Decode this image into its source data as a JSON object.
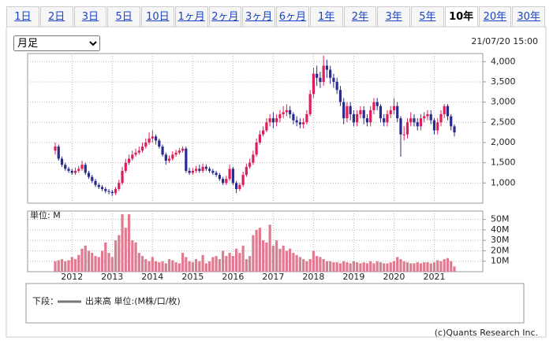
{
  "tabs": [
    "1日",
    "2日",
    "3日",
    "5日",
    "10日",
    "1ヶ月",
    "2ヶ月",
    "3ヶ月",
    "6ヶ月",
    "1年",
    "2年",
    "3年",
    "5年",
    "10年",
    "20年",
    "30年"
  ],
  "active_tab": 13,
  "period_select": "月足",
  "timestamp": "21/07/20 15:00",
  "legend": {
    "prefix": "下段：",
    "entry": "出来高 単位:(M株/口/枚)"
  },
  "credit": "(c)Quants Research Inc.",
  "chart_data": [
    {
      "type": "candlestick",
      "up_color": "#dc1e5a",
      "down_color": "#2b2b8c",
      "grid": true,
      "ylim": [
        500,
        4200
      ],
      "yticks": [
        {
          "value": 1000,
          "label": "1,000"
        },
        {
          "value": 1500,
          "label": "1,500"
        },
        {
          "value": 2000,
          "label": "2,000"
        },
        {
          "value": 2500,
          "label": "2,500"
        },
        {
          "value": 3000,
          "label": "3,000"
        },
        {
          "value": 3500,
          "label": "3,500"
        },
        {
          "value": 4000,
          "label": "4,000"
        }
      ],
      "open": [
        1800,
        1900,
        1600,
        1450,
        1350,
        1300,
        1250,
        1300,
        1350,
        1450,
        1250,
        1150,
        1050,
        950,
        900,
        850,
        800,
        780,
        750,
        850,
        1000,
        1300,
        1500,
        1600,
        1700,
        1750,
        1800,
        1900,
        2000,
        2100,
        2150,
        2050,
        1900,
        1700,
        1550,
        1600,
        1700,
        1750,
        1800,
        1850,
        1300,
        1250,
        1300,
        1350,
        1300,
        1400,
        1350,
        1300,
        1250,
        1200,
        1100,
        1000,
        1100,
        1350,
        1000,
        850,
        950,
        1200,
        1400,
        1500,
        1700,
        2000,
        2200,
        2300,
        2500,
        2600,
        2500,
        2600,
        2700,
        2750,
        2800,
        2700,
        2550,
        2500,
        2450,
        2500,
        2700,
        3200,
        3700,
        3600,
        3500,
        3900,
        3800,
        3600,
        3500,
        3300,
        3000,
        2600,
        2900,
        2700,
        2500,
        2700,
        2800,
        2600,
        2500,
        2800,
        3000,
        2900,
        2600,
        2500,
        2700,
        2800,
        2900,
        2600,
        2200,
        2200,
        2500,
        2600,
        2500,
        2400,
        2600,
        2650,
        2700,
        2550,
        2300,
        2500,
        2700,
        2900,
        2650,
        2400
      ],
      "high": [
        2000,
        1950,
        1650,
        1500,
        1400,
        1350,
        1380,
        1420,
        1550,
        1500,
        1300,
        1200,
        1100,
        1000,
        950,
        900,
        850,
        830,
        900,
        1080,
        1400,
        1600,
        1700,
        1800,
        1850,
        1900,
        2000,
        2100,
        2250,
        2300,
        2200,
        2100,
        1950,
        1750,
        1680,
        1780,
        1820,
        1870,
        1900,
        1900,
        1380,
        1370,
        1420,
        1450,
        1480,
        1460,
        1400,
        1350,
        1300,
        1250,
        1150,
        1180,
        1450,
        1400,
        1050,
        1000,
        1280,
        1480,
        1600,
        1800,
        2100,
        2300,
        2400,
        2600,
        2700,
        2750,
        2700,
        2800,
        2900,
        2950,
        2900,
        2750,
        2650,
        2600,
        2600,
        2800,
        3300,
        3850,
        3900,
        3750,
        4150,
        4050,
        3900,
        3700,
        3600,
        3400,
        3100,
        3000,
        3000,
        2800,
        2800,
        2900,
        2900,
        2700,
        2900,
        3100,
        3100,
        2950,
        2700,
        2800,
        2900,
        3100,
        3000,
        2650,
        2400,
        2600,
        2750,
        2700,
        2600,
        2700,
        2750,
        2800,
        2800,
        2600,
        2600,
        2800,
        2950,
        2950,
        2700,
        2450
      ],
      "low": [
        1700,
        1550,
        1400,
        1300,
        1250,
        1200,
        1200,
        1250,
        1300,
        1200,
        1100,
        1000,
        900,
        850,
        800,
        750,
        720,
        680,
        700,
        800,
        950,
        1250,
        1450,
        1550,
        1650,
        1700,
        1750,
        1850,
        1950,
        2000,
        1950,
        1850,
        1650,
        1450,
        1500,
        1550,
        1650,
        1700,
        1750,
        1250,
        1200,
        1200,
        1250,
        1250,
        1250,
        1300,
        1250,
        1200,
        1150,
        1050,
        950,
        950,
        1050,
        950,
        750,
        800,
        900,
        1150,
        1350,
        1450,
        1650,
        1950,
        2150,
        2250,
        2400,
        2350,
        2400,
        2500,
        2600,
        2650,
        2600,
        2450,
        2400,
        2350,
        2350,
        2450,
        2650,
        3100,
        3400,
        3350,
        3400,
        3600,
        3450,
        3350,
        3200,
        2900,
        2450,
        2500,
        2550,
        2400,
        2400,
        2600,
        2450,
        2400,
        2400,
        2700,
        2800,
        2500,
        2400,
        2400,
        2600,
        2700,
        2500,
        1650,
        2050,
        2100,
        2400,
        2400,
        2300,
        2300,
        2500,
        2550,
        2450,
        2200,
        2200,
        2400,
        2600,
        2550,
        2300,
        2150
      ],
      "close": [
        1900,
        1600,
        1450,
        1350,
        1300,
        1250,
        1300,
        1350,
        1450,
        1250,
        1150,
        1050,
        950,
        900,
        850,
        800,
        780,
        750,
        850,
        1000,
        1300,
        1500,
        1600,
        1700,
        1750,
        1800,
        1900,
        2000,
        2100,
        2150,
        2050,
        1900,
        1700,
        1550,
        1600,
        1700,
        1750,
        1800,
        1850,
        1300,
        1250,
        1300,
        1350,
        1300,
        1400,
        1350,
        1300,
        1250,
        1200,
        1100,
        1000,
        1100,
        1350,
        1000,
        850,
        950,
        1200,
        1400,
        1500,
        1700,
        2000,
        2200,
        2300,
        2500,
        2600,
        2500,
        2600,
        2700,
        2750,
        2800,
        2700,
        2550,
        2500,
        2450,
        2500,
        2700,
        3200,
        3700,
        3600,
        3500,
        3900,
        3800,
        3600,
        3500,
        3300,
        3000,
        2600,
        2900,
        2700,
        2500,
        2700,
        2800,
        2600,
        2500,
        2800,
        3000,
        2900,
        2600,
        2500,
        2700,
        2800,
        2900,
        2600,
        2200,
        2200,
        2500,
        2600,
        2500,
        2400,
        2600,
        2650,
        2700,
        2550,
        2300,
        2500,
        2700,
        2900,
        2650,
        2400,
        2250
      ]
    },
    {
      "type": "bar",
      "unit_label": "単位: M",
      "color": "#e07a90",
      "grid": true,
      "ylim": [
        0,
        58
      ],
      "yticks": [
        {
          "value": 10,
          "label": "10M"
        },
        {
          "value": 20,
          "label": "20M"
        },
        {
          "value": 30,
          "label": "30M"
        },
        {
          "value": 40,
          "label": "40M"
        },
        {
          "value": 50,
          "label": "50M"
        }
      ],
      "categories": [
        null,
        null,
        null,
        null,
        null,
        "2012",
        null,
        null,
        null,
        null,
        null,
        null,
        null,
        null,
        null,
        null,
        null,
        "2013",
        null,
        null,
        null,
        null,
        null,
        null,
        null,
        null,
        null,
        null,
        null,
        "2014",
        null,
        null,
        null,
        null,
        null,
        null,
        null,
        null,
        null,
        null,
        null,
        "2015",
        null,
        null,
        null,
        null,
        null,
        null,
        null,
        null,
        null,
        null,
        null,
        "2016",
        null,
        null,
        null,
        null,
        null,
        null,
        null,
        null,
        null,
        null,
        null,
        "2017",
        null,
        null,
        null,
        null,
        null,
        null,
        null,
        null,
        null,
        null,
        null,
        "2018",
        null,
        null,
        null,
        null,
        null,
        null,
        null,
        null,
        null,
        null,
        null,
        "2019",
        null,
        null,
        null,
        null,
        null,
        null,
        null,
        null,
        null,
        null,
        null,
        "2020",
        null,
        null,
        null,
        null,
        null,
        null,
        null,
        null,
        null,
        null,
        null,
        "2021",
        null,
        null,
        null,
        null,
        null,
        null
      ],
      "values": [
        10,
        11,
        12,
        10,
        11,
        14,
        12,
        16,
        22,
        25,
        20,
        18,
        15,
        14,
        20,
        28,
        18,
        14,
        30,
        35,
        55,
        42,
        55,
        30,
        28,
        18,
        15,
        12,
        10,
        14,
        10,
        9,
        10,
        8,
        12,
        11,
        9,
        8,
        18,
        14,
        10,
        9,
        12,
        10,
        16,
        8,
        10,
        14,
        15,
        12,
        20,
        15,
        18,
        15,
        22,
        18,
        25,
        12,
        15,
        35,
        40,
        42,
        30,
        28,
        45,
        25,
        30,
        22,
        25,
        20,
        22,
        18,
        16,
        14,
        12,
        10,
        12,
        20,
        15,
        14,
        12,
        10,
        10,
        9,
        9,
        8,
        10,
        9,
        8,
        10,
        9,
        8,
        9,
        8,
        10,
        8,
        10,
        9,
        8,
        8,
        9,
        10,
        14,
        12,
        10,
        9,
        8,
        8,
        9,
        8,
        9,
        9,
        8,
        9,
        11,
        10,
        12,
        13,
        10,
        5
      ]
    }
  ]
}
